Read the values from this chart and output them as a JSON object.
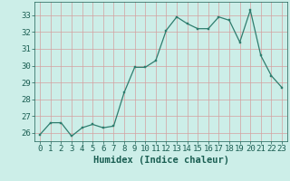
{
  "x": [
    0,
    1,
    2,
    3,
    4,
    5,
    6,
    7,
    8,
    9,
    10,
    11,
    12,
    13,
    14,
    15,
    16,
    17,
    18,
    19,
    20,
    21,
    22,
    23
  ],
  "y": [
    25.9,
    26.6,
    26.6,
    25.8,
    26.3,
    26.5,
    26.3,
    26.4,
    28.4,
    29.9,
    29.9,
    30.3,
    32.1,
    32.9,
    32.5,
    32.2,
    32.2,
    32.9,
    32.7,
    31.4,
    33.3,
    30.6,
    29.4,
    28.7
  ],
  "line_color": "#2e7d6e",
  "marker": "s",
  "marker_size": 2,
  "bg_color": "#cceee8",
  "grid_major_color": "#b0d8d0",
  "grid_minor_color": "#ddf5f0",
  "xlabel": "Humidex (Indice chaleur)",
  "xlim": [
    -0.5,
    23.5
  ],
  "ylim": [
    25.5,
    33.8
  ],
  "yticks": [
    26,
    27,
    28,
    29,
    30,
    31,
    32,
    33
  ],
  "xticks": [
    0,
    1,
    2,
    3,
    4,
    5,
    6,
    7,
    8,
    9,
    10,
    11,
    12,
    13,
    14,
    15,
    16,
    17,
    18,
    19,
    20,
    21,
    22,
    23
  ],
  "tick_color": "#1a5e52",
  "xlabel_fontsize": 7.5,
  "tick_fontsize": 6.5,
  "linewidth": 0.9
}
